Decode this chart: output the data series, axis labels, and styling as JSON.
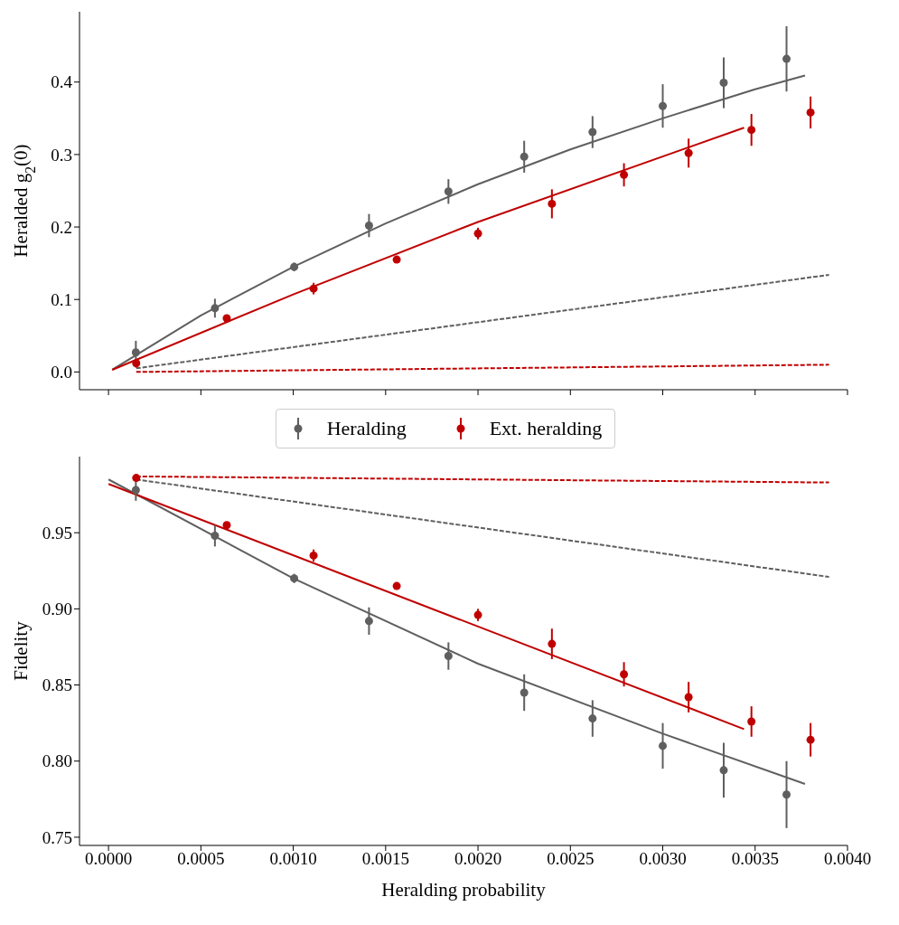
{
  "chart_data": [
    {
      "type": "scatter",
      "ylabel": "Heralded g$_{2}$(0)",
      "legend": "bottom",
      "tick_labels": "y",
      "xlim": [
        -0.000157,
        0.004
      ],
      "ylim": [
        -0.0245,
        0.497
      ],
      "xticks": [
        0,
        0.0005,
        0.001,
        0.0015,
        0.002,
        0.0025,
        0.003,
        0.0035,
        0.004
      ],
      "yticks": [
        {
          "value": 0,
          "label": "0.0"
        },
        0.1,
        0.2,
        0.3,
        0.4
      ],
      "series": [
        {
          "type": "line",
          "marker": "none",
          "color": "#5f5f5f",
          "line_style": "solid",
          "x": [
            2e-05,
            0.0005,
            0.001,
            0.0015,
            0.002,
            0.0025,
            0.003,
            0.0035,
            0.00377
          ],
          "values": [
            0.003,
            0.078,
            0.145,
            0.205,
            0.259,
            0.307,
            0.35,
            0.39,
            0.409
          ]
        },
        {
          "type": "line",
          "marker": "none",
          "color": "#c00000",
          "line_style": "solid",
          "x": [
            2e-05,
            0.001,
            0.002,
            0.00344
          ],
          "values": [
            0.003,
            0.107,
            0.207,
            0.337
          ]
        },
        {
          "type": "line",
          "marker": "none",
          "color": "#5f5f5f",
          "line_style": "dashed",
          "x": [
            0.00015,
            0.0039
          ],
          "values": [
            0.005,
            0.134
          ]
        },
        {
          "type": "line",
          "marker": "none",
          "color": "#c00000",
          "line_style": "dashed",
          "x": [
            0.00015,
            0.0039
          ],
          "values": [
            0.0,
            0.01
          ]
        },
        {
          "marker": "circle",
          "name": "Heralding",
          "color": "#5f5f5f",
          "x": [
            0.000148,
            0.000576,
            0.001005,
            0.00141,
            0.00184,
            0.00225,
            0.00262,
            0.003,
            0.00333,
            0.00367
          ],
          "values": [
            0.027,
            0.088,
            0.145,
            0.202,
            0.249,
            0.297,
            0.331,
            0.367,
            0.399,
            0.432
          ],
          "errors": [
            0.016,
            0.013,
            0.006,
            0.016,
            0.017,
            0.022,
            0.022,
            0.03,
            0.035,
            0.045
          ]
        },
        {
          "marker": "circle",
          "name": "Ext. heralding",
          "color": "#c00000",
          "x": [
            0.00015,
            0.00064,
            0.00111,
            0.00156,
            0.002,
            0.0024,
            0.00279,
            0.00314,
            0.00348,
            0.0038
          ],
          "values": [
            0.012,
            0.074,
            0.115,
            0.155,
            0.191,
            0.232,
            0.272,
            0.302,
            0.334,
            0.358
          ],
          "errors": [
            0.006,
            0.004,
            0.008,
            0.004,
            0.008,
            0.02,
            0.016,
            0.02,
            0.022,
            0.022
          ]
        }
      ]
    },
    {
      "type": "scatter",
      "ylabel": "Fidelity",
      "xlabel": "Heralding probability",
      "xlim": [
        -0.000157,
        0.004
      ],
      "ylim": [
        0.7446,
        1.0
      ],
      "xticks": [
        {
          "value": 0,
          "label": "0.0000"
        },
        {
          "value": 0.0005,
          "label": "0.0005"
        },
        {
          "value": 0.001,
          "label": "0.0010"
        },
        {
          "value": 0.0015,
          "label": "0.0015"
        },
        {
          "value": 0.002,
          "label": "0.0020"
        },
        {
          "value": 0.0025,
          "label": "0.0025"
        },
        {
          "value": 0.003,
          "label": "0.0030"
        },
        {
          "value": 0.0035,
          "label": "0.0035"
        },
        {
          "value": 0.004,
          "label": "0.0040"
        }
      ],
      "yticks": [
        0.75,
        {
          "value": 0.8,
          "label": "0.80"
        },
        0.85,
        {
          "value": 0.9,
          "label": "0.90"
        },
        0.95
      ],
      "series": [
        {
          "type": "line",
          "marker": "none",
          "color": "#5f5f5f",
          "line_style": "solid",
          "x": [
            0.0,
            0.001,
            0.002,
            0.003,
            0.00377
          ],
          "values": [
            0.985,
            0.92,
            0.864,
            0.818,
            0.785
          ]
        },
        {
          "type": "line",
          "marker": "none",
          "color": "#c00000",
          "line_style": "solid",
          "x": [
            0.0,
            0.00344
          ],
          "values": [
            0.982,
            0.821
          ]
        },
        {
          "type": "line",
          "marker": "none",
          "color": "#5f5f5f",
          "line_style": "dashed",
          "x": [
            0.00015,
            0.0039
          ],
          "values": [
            0.985,
            0.921
          ]
        },
        {
          "type": "line",
          "marker": "none",
          "color": "#c00000",
          "line_style": "dashed",
          "x": [
            0.00015,
            0.0039
          ],
          "values": [
            0.987,
            0.983
          ]
        },
        {
          "marker": "circle",
          "color": "#5f5f5f",
          "x": [
            0.000148,
            0.000576,
            0.001005,
            0.00141,
            0.00184,
            0.00225,
            0.00262,
            0.003,
            0.00333,
            0.00367
          ],
          "values": [
            0.978,
            0.948,
            0.92,
            0.892,
            0.869,
            0.845,
            0.828,
            0.81,
            0.794,
            0.778
          ],
          "errors": [
            0.007,
            0.007,
            0.003,
            0.009,
            0.009,
            0.012,
            0.012,
            0.015,
            0.018,
            0.022
          ]
        },
        {
          "marker": "circle",
          "color": "#c00000",
          "x": [
            0.00015,
            0.00064,
            0.00111,
            0.00156,
            0.002,
            0.0024,
            0.00279,
            0.00314,
            0.00348,
            0.0038
          ],
          "values": [
            0.986,
            0.955,
            0.935,
            0.915,
            0.896,
            0.877,
            0.857,
            0.842,
            0.826,
            0.814
          ],
          "errors": [
            0.002,
            0.002,
            0.004,
            0.002,
            0.004,
            0.01,
            0.008,
            0.01,
            0.01,
            0.011
          ]
        }
      ]
    }
  ]
}
